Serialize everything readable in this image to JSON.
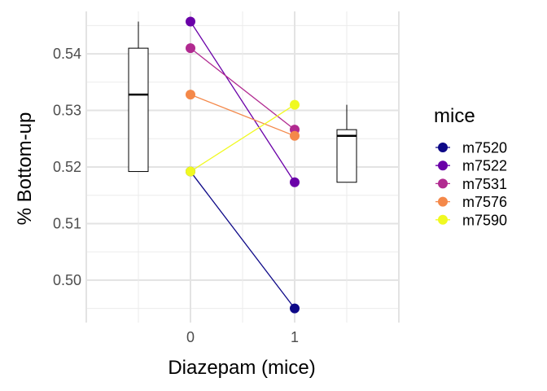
{
  "chart_data": {
    "type": "scatter",
    "xlabel": "Diazepam (mice)",
    "ylabel": "% Bottom-up",
    "x_ticks": [
      "0",
      "1"
    ],
    "y_ticks": [
      "0.50",
      "0.51",
      "0.52",
      "0.53",
      "0.54"
    ],
    "y_tick_values": [
      0.5,
      0.51,
      0.52,
      0.53,
      0.54
    ],
    "xlim": [
      -1.0,
      2.0
    ],
    "ylim": [
      0.4925,
      0.5475
    ],
    "grid": true,
    "legend": {
      "title": "mice",
      "position": "right"
    },
    "series": [
      {
        "name": "m7520",
        "color": "#0D0887",
        "x": [
          0,
          1
        ],
        "y": [
          0.5192,
          0.495
        ]
      },
      {
        "name": "m7522",
        "color": "#6A00A8",
        "x": [
          0,
          1
        ],
        "y": [
          0.5457,
          0.5173
        ]
      },
      {
        "name": "m7531",
        "color": "#B12A90",
        "x": [
          0,
          1
        ],
        "y": [
          0.541,
          0.5266
        ]
      },
      {
        "name": "m7576",
        "color": "#F48849",
        "x": [
          0,
          1
        ],
        "y": [
          0.5328,
          0.5255
        ]
      },
      {
        "name": "m7590",
        "color": "#F0F921",
        "x": [
          0,
          1
        ],
        "y": [
          0.5192,
          0.531
        ]
      }
    ],
    "boxplots": [
      {
        "group": "0",
        "x": -0.5,
        "whisker_low": 0.5192,
        "q1": 0.5192,
        "median": 0.5328,
        "q3": 0.541,
        "whisker_high": 0.5457
      },
      {
        "group": "1",
        "x": 1.5,
        "whisker_low": 0.5173,
        "q1": 0.5173,
        "median": 0.5255,
        "q3": 0.5266,
        "whisker_high": 0.531
      }
    ]
  }
}
